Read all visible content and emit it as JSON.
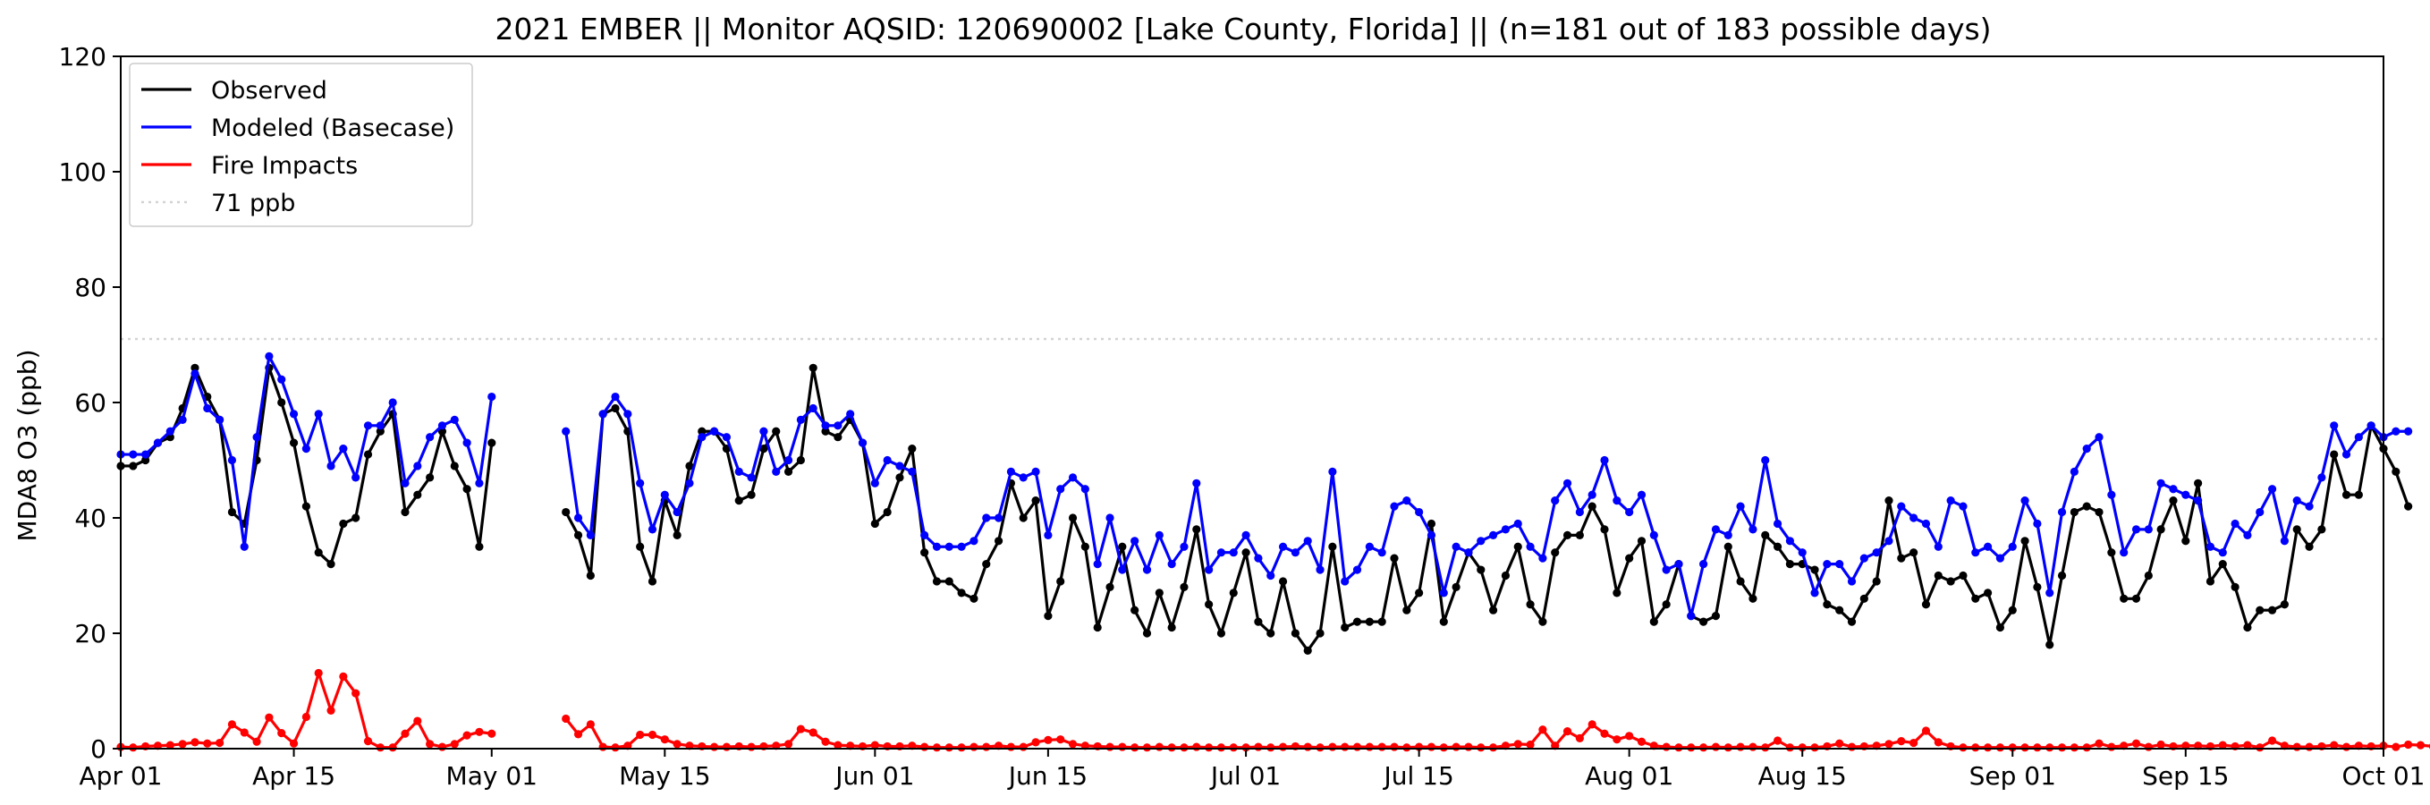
{
  "chart_data": {
    "type": "line",
    "title": "2021 EMBER || Monitor AQSID: 120690002 [Lake County, Florida] || (n=181 out of 183 possible days)",
    "xlabel": "",
    "ylabel": "MDA8 O3 (ppb)",
    "xlim": [
      "2021-04-01",
      "2021-10-01"
    ],
    "ylim": [
      0,
      120
    ],
    "x_ticks": [
      {
        "date": "2021-04-01",
        "label": "Apr 01"
      },
      {
        "date": "2021-04-15",
        "label": "Apr 15"
      },
      {
        "date": "2021-05-01",
        "label": "May 01"
      },
      {
        "date": "2021-05-15",
        "label": "May 15"
      },
      {
        "date": "2021-06-01",
        "label": "Jun 01"
      },
      {
        "date": "2021-06-15",
        "label": "Jun 15"
      },
      {
        "date": "2021-07-01",
        "label": "Jul 01"
      },
      {
        "date": "2021-07-15",
        "label": "Jul 15"
      },
      {
        "date": "2021-08-01",
        "label": "Aug 01"
      },
      {
        "date": "2021-08-15",
        "label": "Aug 15"
      },
      {
        "date": "2021-09-01",
        "label": "Sep 01"
      },
      {
        "date": "2021-09-15",
        "label": "Sep 15"
      },
      {
        "date": "2021-10-01",
        "label": "Oct 01"
      }
    ],
    "y_ticks": [
      0,
      20,
      40,
      60,
      80,
      100,
      120
    ],
    "grid": false,
    "legend_position": "top-left",
    "x_start": "2021-04-01",
    "x_step": "1 day",
    "series": [
      {
        "name": "Observed",
        "color": "#000000",
        "values": [
          49,
          49,
          50,
          53,
          54,
          59,
          66,
          61,
          57,
          41,
          39,
          50,
          66,
          60,
          53,
          42,
          34,
          32,
          39,
          40,
          51,
          55,
          58,
          41,
          44,
          47,
          55,
          49,
          45,
          35,
          53,
          null,
          null,
          null,
          null,
          null,
          41,
          37,
          30,
          58,
          59,
          55,
          35,
          29,
          43,
          37,
          49,
          55,
          55,
          52,
          43,
          44,
          52,
          55,
          48,
          50,
          66,
          55,
          54,
          57,
          53,
          39,
          41,
          47,
          52,
          34,
          29,
          29,
          27,
          26,
          32,
          36,
          46,
          40,
          43,
          23,
          29,
          40,
          35,
          21,
          28,
          35,
          24,
          20,
          27,
          21,
          28,
          38,
          25,
          20,
          27,
          34,
          22,
          20,
          29,
          20,
          17,
          20,
          35,
          21,
          22,
          22,
          22,
          33,
          24,
          27,
          39,
          22,
          28,
          34,
          31,
          24,
          30,
          35,
          25,
          22,
          34,
          37,
          37,
          42,
          38,
          27,
          33,
          36,
          22,
          25,
          32,
          23,
          22,
          23,
          35,
          29,
          26,
          37,
          35,
          32,
          32,
          31,
          25,
          24,
          22,
          26,
          29,
          43,
          33,
          34,
          25,
          30,
          29,
          30,
          26,
          27,
          21,
          24,
          36,
          28,
          18,
          30,
          41,
          42,
          41,
          34,
          26,
          26,
          30,
          38,
          43,
          36,
          46,
          29,
          32,
          28,
          21,
          24,
          24,
          25,
          38,
          35,
          38,
          51,
          44,
          44,
          56,
          52,
          48,
          42
        ]
      },
      {
        "name": "Modeled (Basecase)",
        "color": "#0000ff",
        "values": [
          51,
          51,
          51,
          53,
          55,
          57,
          65,
          59,
          57,
          50,
          35,
          54,
          68,
          64,
          58,
          52,
          58,
          49,
          52,
          47,
          56,
          56,
          60,
          46,
          49,
          54,
          56,
          57,
          53,
          46,
          61,
          null,
          null,
          null,
          null,
          null,
          55,
          40,
          37,
          58,
          61,
          58,
          46,
          38,
          44,
          41,
          46,
          54,
          55,
          54,
          48,
          47,
          55,
          48,
          50,
          57,
          59,
          56,
          56,
          58,
          53,
          46,
          50,
          49,
          48,
          37,
          35,
          35,
          35,
          36,
          40,
          40,
          48,
          47,
          48,
          37,
          45,
          47,
          45,
          32,
          40,
          31,
          36,
          31,
          37,
          32,
          35,
          46,
          31,
          34,
          34,
          37,
          33,
          30,
          35,
          34,
          36,
          31,
          48,
          29,
          31,
          35,
          34,
          42,
          43,
          41,
          37,
          27,
          35,
          34,
          36,
          37,
          38,
          39,
          35,
          33,
          43,
          46,
          41,
          44,
          50,
          43,
          41,
          44,
          37,
          31,
          32,
          23,
          32,
          38,
          37,
          42,
          38,
          50,
          39,
          36,
          34,
          27,
          32,
          32,
          29,
          33,
          34,
          36,
          42,
          40,
          39,
          35,
          43,
          42,
          34,
          35,
          33,
          35,
          43,
          39,
          27,
          41,
          48,
          52,
          54,
          44,
          34,
          38,
          38,
          46,
          45,
          44,
          43,
          35,
          34,
          39,
          37,
          41,
          45,
          36,
          43,
          42,
          47,
          56,
          51,
          54,
          56,
          54,
          55,
          55
        ]
      },
      {
        "name": "Fire Impacts",
        "color": "#ff0000",
        "values": [
          0.3,
          0.2,
          0.4,
          0.5,
          0.6,
          0.8,
          1.1,
          0.9,
          1.0,
          4.2,
          2.8,
          1.2,
          5.4,
          2.7,
          0.9,
          5.5,
          13.1,
          6.6,
          12.5,
          9.6,
          1.3,
          0.2,
          0.2,
          2.6,
          4.8,
          0.8,
          0.3,
          0.8,
          2.3,
          2.9,
          2.6,
          null,
          null,
          null,
          null,
          null,
          5.2,
          2.5,
          4.2,
          0.3,
          0.2,
          0.5,
          2.4,
          2.4,
          1.6,
          0.8,
          0.5,
          0.4,
          0.3,
          0.3,
          0.4,
          0.3,
          0.4,
          0.5,
          0.8,
          3.4,
          2.8,
          1.2,
          0.6,
          0.5,
          0.4,
          0.6,
          0.4,
          0.4,
          0.5,
          0.3,
          0.2,
          0.2,
          0.2,
          0.3,
          0.3,
          0.5,
          0.3,
          0.3,
          1.1,
          1.5,
          1.6,
          0.8,
          0.5,
          0.4,
          0.3,
          0.3,
          0.2,
          0.2,
          0.3,
          0.2,
          0.2,
          0.3,
          0.2,
          0.2,
          0.2,
          0.2,
          0.3,
          0.2,
          0.3,
          0.4,
          0.3,
          0.2,
          0.3,
          0.3,
          0.3,
          0.3,
          0.3,
          0.3,
          0.2,
          0.3,
          0.3,
          0.2,
          0.3,
          0.3,
          0.2,
          0.2,
          0.5,
          0.8,
          0.7,
          3.3,
          0.5,
          3.0,
          1.8,
          4.2,
          2.6,
          1.6,
          2.2,
          1.2,
          0.5,
          0.3,
          0.2,
          0.2,
          0.2,
          0.3,
          0.2,
          0.3,
          0.3,
          0.2,
          1.4,
          0.2,
          0.2,
          0.2,
          0.4,
          0.9,
          0.3,
          0.4,
          0.5,
          0.8,
          1.3,
          1.0,
          3.1,
          1.1,
          0.4,
          0.2,
          0.2,
          0.2,
          0.2,
          0.2,
          0.2,
          0.2,
          0.2,
          0.2,
          0.2,
          0.2,
          0.9,
          0.3,
          0.5,
          0.9,
          0.3,
          0.7,
          0.4,
          0.5,
          0.5,
          0.4,
          0.6,
          0.4,
          0.6,
          0.2,
          1.4,
          0.5,
          0.3,
          0.3,
          0.4,
          0.6,
          0.3,
          0.5,
          0.4,
          0.5,
          0.3,
          0.7,
          0.6,
          0.4
        ]
      },
      {
        "name": "71 ppb",
        "color": "#d3d3d3",
        "style": "dotted",
        "constant": 71
      }
    ]
  }
}
